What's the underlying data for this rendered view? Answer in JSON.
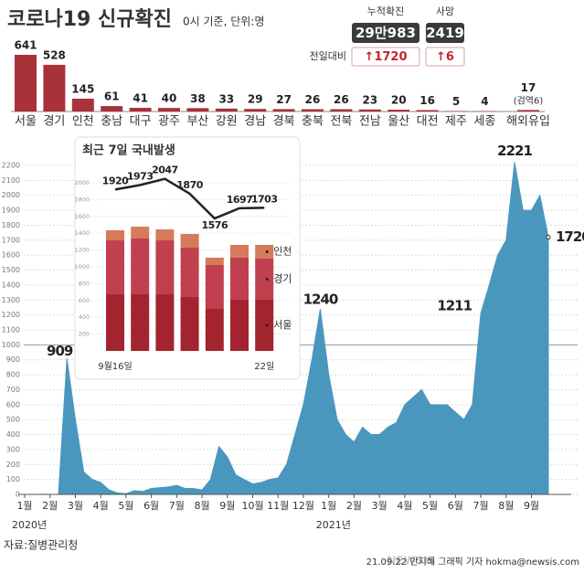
{
  "header": {
    "title": "코로나19 신규확진",
    "subtitle": "0시 기준, 단위:명"
  },
  "stats": {
    "cumulative_label": "누적확진",
    "cumulative": "29만983",
    "deaths_label": "사망",
    "deaths": "2419",
    "change_label": "전일대비",
    "cumulative_change": "↑1720",
    "deaths_change": "↑6"
  },
  "chart_data": [
    {
      "type": "bar",
      "categories": [
        "서울",
        "경기",
        "인천",
        "충남",
        "대구",
        "광주",
        "부산",
        "강원",
        "경남",
        "경북",
        "충북",
        "전북",
        "전남",
        "울산",
        "대전",
        "제주",
        "세종",
        "해외유입"
      ],
      "values": [
        641,
        528,
        145,
        61,
        41,
        40,
        38,
        33,
        29,
        27,
        26,
        26,
        23,
        20,
        16,
        5,
        4,
        17
      ],
      "annotations": [
        "(검역6)"
      ],
      "color": "#a8323a"
    },
    {
      "type": "area",
      "values": [
        0,
        0,
        1,
        0,
        1,
        909,
        500,
        150,
        100,
        80,
        30,
        10,
        5,
        25,
        20,
        40,
        45,
        50,
        60,
        40,
        40,
        30,
        100,
        320,
        250,
        130,
        100,
        70,
        80,
        100,
        110,
        200,
        400,
        600,
        900,
        1240,
        800,
        500,
        400,
        350,
        450,
        400,
        400,
        450,
        480,
        600,
        650,
        700,
        600,
        600,
        600,
        550,
        500,
        600,
        1211,
        1400,
        1600,
        1700,
        2221,
        1900,
        1900,
        2000,
        1720
      ],
      "xlim": [
        0,
        62
      ],
      "xticks": [
        {
          "value": 0,
          "label": "1월"
        },
        {
          "value": 3,
          "label": "2월"
        },
        {
          "value": 6,
          "label": "3월"
        },
        {
          "value": 9,
          "label": "4월"
        },
        {
          "value": 12,
          "label": "5월"
        },
        {
          "value": 15,
          "label": "6월"
        },
        {
          "value": 18,
          "label": "7월"
        },
        {
          "value": 21,
          "label": "8월"
        },
        {
          "value": 24,
          "label": "9월"
        },
        {
          "value": 27,
          "label": "10월"
        },
        {
          "value": 30,
          "label": "11월"
        },
        {
          "value": 33,
          "label": "12월"
        },
        {
          "value": 36,
          "label": "1월"
        },
        {
          "value": 39,
          "label": "2월"
        },
        {
          "value": 42,
          "label": "3월"
        },
        {
          "value": 45,
          "label": "4월"
        },
        {
          "value": 48,
          "label": "5월"
        },
        {
          "value": 51,
          "label": "6월"
        },
        {
          "value": 54,
          "label": "7월"
        },
        {
          "value": 57,
          "label": "8월"
        },
        {
          "value": 60,
          "label": "9월"
        }
      ],
      "year_labels": [
        "2020년",
        "2021년"
      ],
      "ylim": [
        0,
        2200
      ],
      "yticks": [
        0,
        100,
        200,
        300,
        400,
        500,
        600,
        700,
        800,
        900,
        1000,
        1100,
        1200,
        1300,
        1400,
        1500,
        1600,
        1700,
        1800,
        1900,
        2000,
        2100,
        2200
      ],
      "grid": true,
      "color": "#4a97be"
    },
    {
      "type": "stacked_bar",
      "title": "최근 7일 국내발생",
      "categories": [
        "9월16일",
        null,
        null,
        null,
        null,
        null,
        "22일"
      ],
      "series": [
        {
          "name": "서울",
          "color": "#a3232f",
          "values": [
            674,
            674,
            674,
            641,
            500,
            609,
            609
          ]
        },
        {
          "name": "경기",
          "color": "#c0404f",
          "values": [
            641,
            663,
            641,
            587,
            522,
            500,
            489
          ]
        },
        {
          "name": "인천",
          "color": "#d57a5a",
          "values": [
            120,
            141,
            130,
            163,
            87,
            152,
            163
          ]
        }
      ],
      "line": {
        "color": "#222",
        "values": [
          1920,
          1973,
          2047,
          1870,
          1576,
          1697,
          1703
        ]
      },
      "ylim": [
        0,
        2000
      ],
      "yticks": [
        200,
        400,
        600,
        800,
        1000,
        1200,
        1400,
        1600,
        1800,
        2000
      ],
      "grid": true
    }
  ],
  "footer": {
    "source": "자료:질병관리청",
    "credit": "21.09.22 안지혜 그래픽 기자 hokma@newsis.com",
    "watermark": "NEWSIS"
  }
}
